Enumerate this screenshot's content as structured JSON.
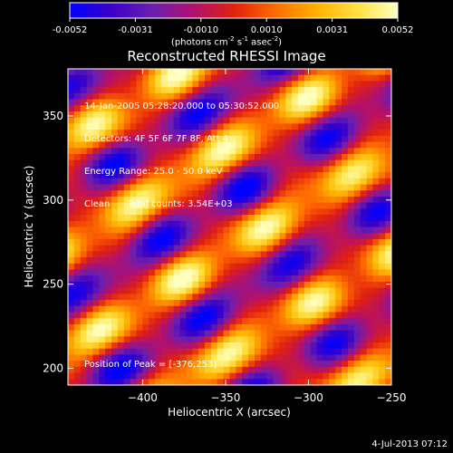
{
  "chart_data": {
    "type": "heatmap",
    "title": "Reconstructed RHESSI Image",
    "xlabel": "Heliocentric X (arcsec)",
    "ylabel": "Heliocentric Y (arcsec)",
    "xlim": [
      -445,
      -250
    ],
    "ylim": [
      190,
      378
    ],
    "xticks": [
      -400,
      -350,
      -300,
      -250
    ],
    "yticks": [
      200,
      250,
      300,
      350
    ],
    "colorbar": {
      "min": -0.0052,
      "max": 0.0052,
      "ticks": [
        "-0.0052",
        "-0.0031",
        "-0.0010",
        "0.0010",
        "0.0031",
        "0.0052"
      ],
      "unit_main": "(photons cm",
      "unit_sup1": "-2",
      "unit_mid1": " s",
      "unit_sup2": "-1",
      "unit_mid2": " asec",
      "unit_sup3": "-2",
      "unit_end": ")",
      "colors": [
        "#0000ff",
        "#3a00c8",
        "#6a1fb0",
        "#b01070",
        "#e02010",
        "#ff6a00",
        "#ffb000",
        "#ffe040",
        "#ffffc0"
      ]
    },
    "peak": {
      "x": -376,
      "y": 253
    },
    "info_lines": [
      "14-Jan-2005 05:28:20.000 to 05:30:52.000",
      "Detectors: 4F 5F 6F 7F 8F, Att 4",
      "Energy Range: 25.0 - 50.0 keV",
      "Clean      Total counts: 3.54E+03"
    ],
    "peak_label": "Position of Peak = [-376,253]"
  },
  "timestamp": "4-Jul-2013 07:12"
}
